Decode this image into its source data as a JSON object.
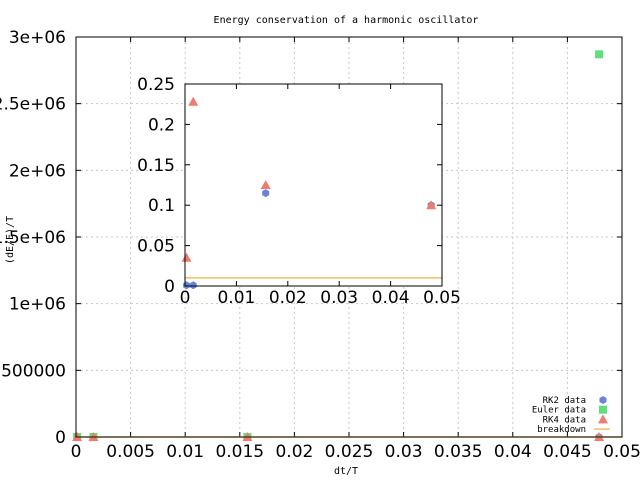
{
  "chart_data": [
    {
      "type": "scatter",
      "title": "Energy conservation of a harmonic oscillator",
      "xlabel": "dt/T",
      "ylabel": "(dE/E)/T",
      "xlim": [
        0,
        0.05
      ],
      "ylim": [
        0,
        3000000
      ],
      "x_ticks": [
        "0",
        "0.005",
        "0.01",
        "0.015",
        "0.02",
        "0.025",
        "0.03",
        "0.035",
        "0.04",
        "0.045",
        "0.05"
      ],
      "y_ticks": [
        "0",
        "500000",
        "1e+06",
        "1.5e+06",
        "2e+06",
        "2.5e+06",
        "3e+06"
      ],
      "grid": true,
      "legend_position": "bottom-right",
      "series": [
        {
          "name": "RK2 data",
          "color": "#6a85d6",
          "marker": "hexagon",
          "points": [
            [
              0.0001,
              0
            ],
            [
              0.0016,
              0
            ],
            [
              0.0157,
              0
            ],
            [
              0.0479,
              0
            ]
          ]
        },
        {
          "name": "Euler data",
          "color": "#5fe07d",
          "marker": "square",
          "points": [
            [
              0.0001,
              0
            ],
            [
              0.0016,
              0
            ],
            [
              0.0157,
              0
            ],
            [
              0.0479,
              2870000
            ]
          ]
        },
        {
          "name": "RK4 data",
          "color": "#f07a6d",
          "marker": "triangle",
          "points": [
            [
              0.0001,
              0
            ],
            [
              0.0016,
              0
            ],
            [
              0.0157,
              0
            ],
            [
              0.0479,
              0
            ]
          ]
        },
        {
          "name": "breakdown",
          "color": "#f0c060",
          "marker": "line",
          "constant": 0.01
        }
      ]
    },
    {
      "type": "scatter",
      "title": "",
      "xlabel": "",
      "ylabel": "",
      "xlim": [
        0,
        0.05
      ],
      "ylim": [
        0,
        0.25
      ],
      "x_ticks": [
        "0",
        "0.01",
        "0.02",
        "0.03",
        "0.04",
        "0.05"
      ],
      "y_ticks": [
        "0",
        "0.05",
        "0.1",
        "0.15",
        "0.2",
        "0.25"
      ],
      "grid": false,
      "series": [
        {
          "name": "RK2 data",
          "color": "#6a85d6",
          "marker": "hexagon",
          "points": [
            [
              0.0003,
              0.001
            ],
            [
              0.0016,
              0.001
            ],
            [
              0.0157,
              0.115
            ],
            [
              0.0479,
              0.1
            ]
          ]
        },
        {
          "name": "RK4 data",
          "color": "#f07a6d",
          "marker": "triangle",
          "points": [
            [
              0.0003,
              0.035
            ],
            [
              0.0016,
              0.228
            ],
            [
              0.0157,
              0.125
            ],
            [
              0.0479,
              0.1
            ]
          ]
        },
        {
          "name": "breakdown",
          "color": "#f0c060",
          "marker": "line",
          "constant": 0.01
        }
      ]
    }
  ]
}
